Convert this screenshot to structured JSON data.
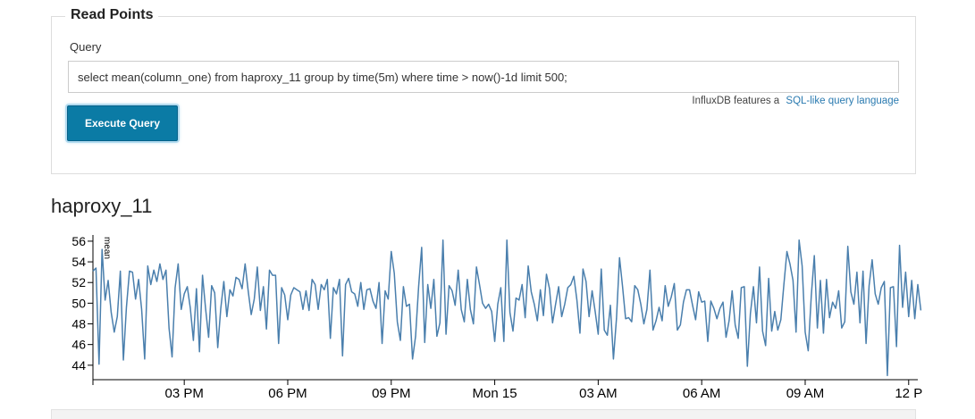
{
  "read_points": {
    "legend": "Read Points",
    "query_label": "Query",
    "query_value": "select mean(column_one) from haproxy_11 group by time(5m) where time > now()-1d limit 500;",
    "hint_text": "InfluxDB features a",
    "hint_link": "SQL-like query language",
    "execute_label": "Execute Query"
  },
  "series_title": "haproxy_11",
  "colors": {
    "line": "#4a7fad",
    "button": "#0b7ba5",
    "link": "#2a7ab0"
  },
  "chart_data": {
    "type": "line",
    "title": "haproxy_11",
    "ylabel": "mean",
    "xlabel": "",
    "ylim": [
      42.6,
      56.6
    ],
    "yticks": [
      44,
      46,
      48,
      50,
      52,
      54,
      56
    ],
    "xlim": [
      0,
      271
    ],
    "xticks": [
      {
        "x": 30,
        "label": "03 PM"
      },
      {
        "x": 64,
        "label": "06 PM"
      },
      {
        "x": 98,
        "label": "09 PM"
      },
      {
        "x": 132,
        "label": "Mon 15"
      },
      {
        "x": 166,
        "label": "03 AM"
      },
      {
        "x": 200,
        "label": "06 AM"
      },
      {
        "x": 234,
        "label": "09 AM"
      },
      {
        "x": 268,
        "label": "12 P"
      }
    ],
    "grid": false,
    "series": [
      {
        "values": [
          53.1,
          53.4,
          44.1,
          55.2,
          50.3,
          52.2,
          49.1,
          47.2,
          48.7,
          53.1,
          44.5,
          49.6,
          53.1,
          53.0,
          50.4,
          52.3,
          49.4,
          44.6,
          53.6,
          51.8,
          53.2,
          52.1,
          53.8,
          52.3,
          53.2,
          47.6,
          44.8,
          51.5,
          53.8,
          49.4,
          50.9,
          51.6,
          49.5,
          46.4,
          51.4,
          45.3,
          52.7,
          49.5,
          46.7,
          51.7,
          51.0,
          45.7,
          49.5,
          52.1,
          48.7,
          51.3,
          50.7,
          52.5,
          52.3,
          51.4,
          53.8,
          51.2,
          48.9,
          50.4,
          53.5,
          49.3,
          51.6,
          47.5,
          53.2,
          52.7,
          52.7,
          46.1,
          51.5,
          50.8,
          48.4,
          50.8,
          51.5,
          51.3,
          51.1,
          49.4,
          51.2,
          49.3,
          52.3,
          51.8,
          49.4,
          51.8,
          51.3,
          52.3,
          46.6,
          51.5,
          50.9,
          52.3,
          44.9,
          51.8,
          52.4,
          51.1,
          50.9,
          49.7,
          52.0,
          49.4,
          51.3,
          51.4,
          50.2,
          49.5,
          52.0,
          46.1,
          51.2,
          50.4,
          55.0,
          52.9,
          48.2,
          46.4,
          51.6,
          49.7,
          49.9,
          44.6,
          46.8,
          51.6,
          55.4,
          46.2,
          51.8,
          49.5,
          52.3,
          46.8,
          48.1,
          56.1,
          47.0,
          51.7,
          51.2,
          49.8,
          53.2,
          49.4,
          48.2,
          52.3,
          49.4,
          48.0,
          53.5,
          51.8,
          50.0,
          49.5,
          49.9,
          49.2,
          46.3,
          49.9,
          51.5,
          46.3,
          56.1,
          49.1,
          47.3,
          50.5,
          50.3,
          51.8,
          48.6,
          53.6,
          51.1,
          49.9,
          48.3,
          51.3,
          48.8,
          52.8,
          51.4,
          48.1,
          49.9,
          51.6,
          48.7,
          49.9,
          51.5,
          51.8,
          52.6,
          50.3,
          47.1,
          53.3,
          52.1,
          48.7,
          51.2,
          49.2,
          47.0,
          53.3,
          47.4,
          46.9,
          49.8,
          44.6,
          48.5,
          54.4,
          51.6,
          48.5,
          48.6,
          48.2,
          51.7,
          51.3,
          49.9,
          48.0,
          49.4,
          53.2,
          47.4,
          48.3,
          49.6,
          48.3,
          51.7,
          49.7,
          50.6,
          51.9,
          47.4,
          47.9,
          50.1,
          51.3,
          51.3,
          49.8,
          48.4,
          51.1,
          50.1,
          50.2,
          46.3,
          50.2,
          49.5,
          48.5,
          49.5,
          50.1,
          46.7,
          48.3,
          51.2,
          47.9,
          46.6,
          51.5,
          51.6,
          43.9,
          49.0,
          51.6,
          48.1,
          53.5,
          47.3,
          45.9,
          52.4,
          47.3,
          49.2,
          47.4,
          48.4,
          51.8,
          55.0,
          53.8,
          52.2,
          47.2,
          56.1,
          53.6,
          47.2,
          45.4,
          50.7,
          54.6,
          47.6,
          52.2,
          47.1,
          52.3,
          48.6,
          50.1,
          49.5,
          51.2,
          47.6,
          48.2,
          55.5,
          51.1,
          49.9,
          53.0,
          48.1,
          53.1,
          46.1,
          51.7,
          54.2,
          50.9,
          49.9,
          51.5,
          52.1,
          43.0,
          51.5,
          51.6,
          45.8,
          55.6,
          49.6,
          53.0,
          48.7,
          52.2,
          48.5,
          51.8,
          49.3
        ]
      }
    ]
  }
}
